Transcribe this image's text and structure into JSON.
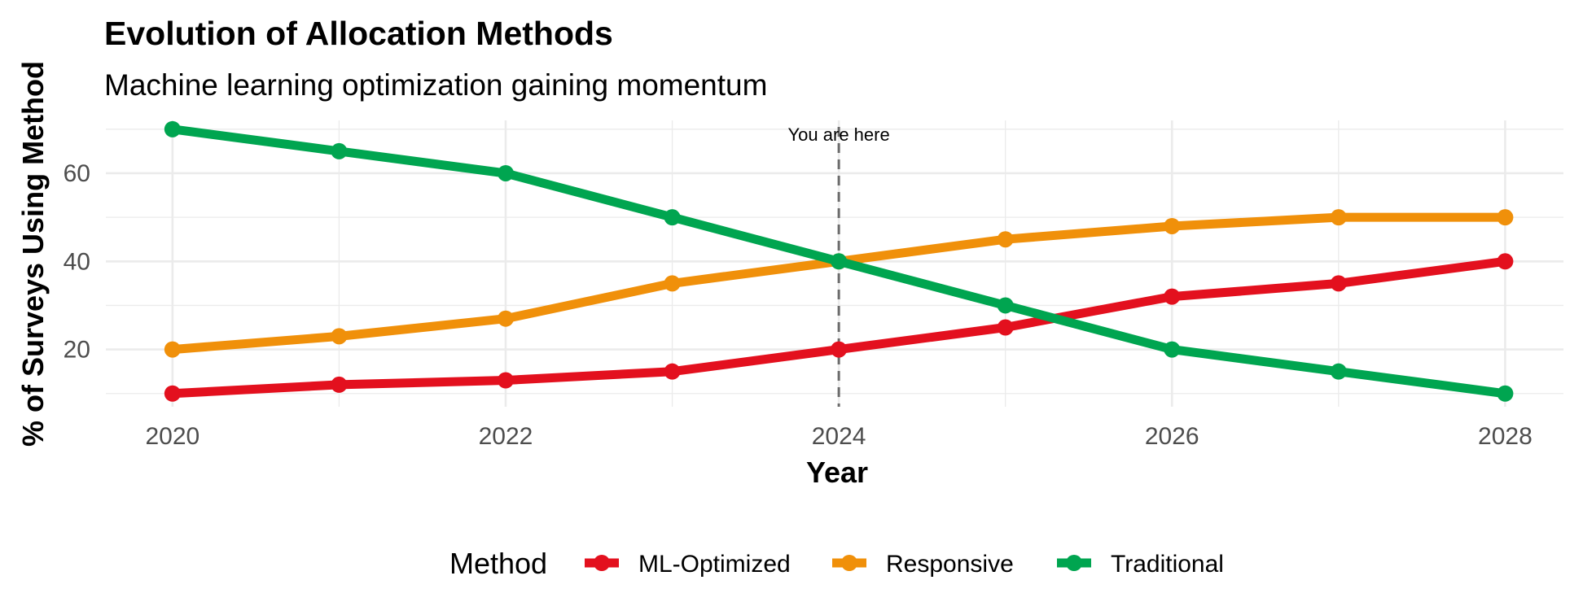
{
  "chart_data": {
    "type": "line",
    "title": "Evolution of Allocation Methods",
    "subtitle": "Machine learning optimization gaining momentum",
    "xlabel": "Year",
    "ylabel": "% of Surveys Using Method",
    "x": [
      2020,
      2021,
      2022,
      2023,
      2024,
      2025,
      2026,
      2027,
      2028
    ],
    "xticks": [
      "2020",
      "2022",
      "2024",
      "2026",
      "2028"
    ],
    "yticks": [
      "20",
      "40",
      "60"
    ],
    "xlim": [
      2019.6,
      2028.35
    ],
    "ylim": [
      7,
      72
    ],
    "grid": true,
    "legend": {
      "title": "Method",
      "position": "bottom"
    },
    "annotation": {
      "x": 2024,
      "label": "You are here",
      "line_style": "dashed"
    },
    "series": [
      {
        "name": "ML-Optimized",
        "color": "#E3101E",
        "values": [
          10,
          12,
          13,
          15,
          20,
          25,
          32,
          35,
          40
        ]
      },
      {
        "name": "Responsive",
        "color": "#F0900A",
        "values": [
          20,
          23,
          27,
          35,
          40,
          45,
          48,
          50,
          50
        ]
      },
      {
        "name": "Traditional",
        "color": "#00A550",
        "values": [
          70,
          65,
          60,
          50,
          40,
          30,
          20,
          15,
          10
        ]
      }
    ]
  }
}
